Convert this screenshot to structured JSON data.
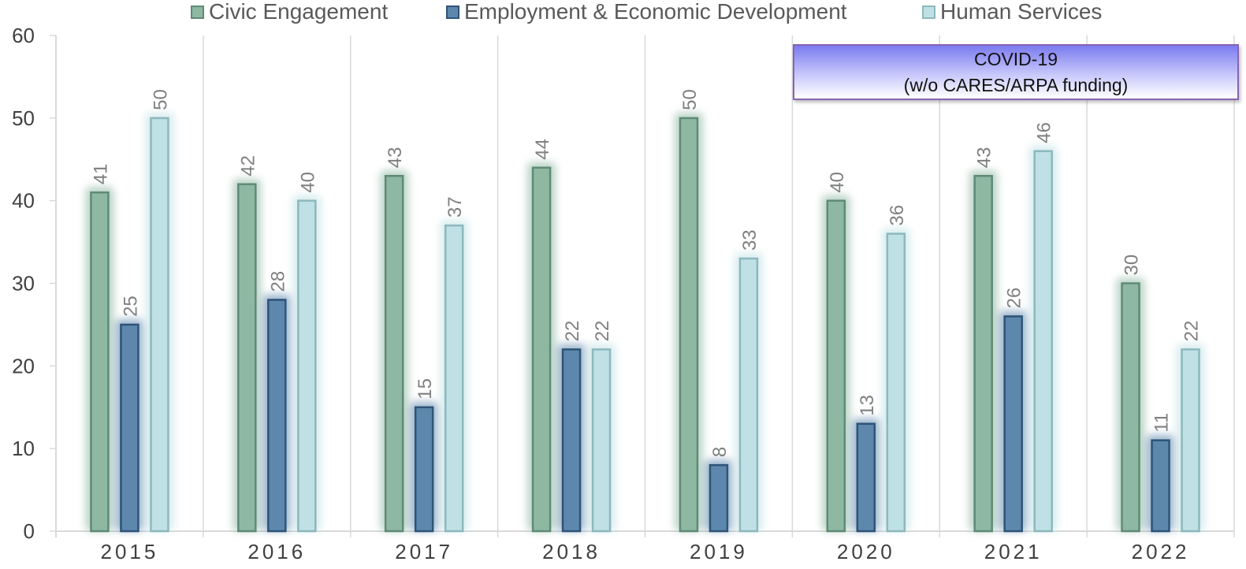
{
  "chart_data": {
    "type": "bar",
    "categories": [
      "2015",
      "2016",
      "2017",
      "2018",
      "2019",
      "2020",
      "2021",
      "2022"
    ],
    "series": [
      {
        "name": "Civic Engagement",
        "values": [
          41,
          42,
          43,
          44,
          50,
          40,
          43,
          30
        ],
        "color": "#8fb8a3",
        "border": "#5e8b75"
      },
      {
        "name": "Employment & Economic Development",
        "values": [
          25,
          28,
          15,
          22,
          8,
          13,
          26,
          11
        ],
        "color": "#5d87ad",
        "border": "#2e5377"
      },
      {
        "name": "Human Services",
        "values": [
          50,
          40,
          37,
          22,
          33,
          36,
          46,
          22
        ],
        "color": "#bfe0e4",
        "border": "#8cb8bd"
      }
    ],
    "ylim": [
      0,
      60
    ],
    "yticks": [
      "0",
      "10",
      "20",
      "30",
      "40",
      "50",
      "60"
    ],
    "legend_position": "top",
    "grid": "vertical category separators",
    "annotation": {
      "line1": "COVID-19",
      "line2": "(w/o CARES/ARPA funding)"
    }
  }
}
